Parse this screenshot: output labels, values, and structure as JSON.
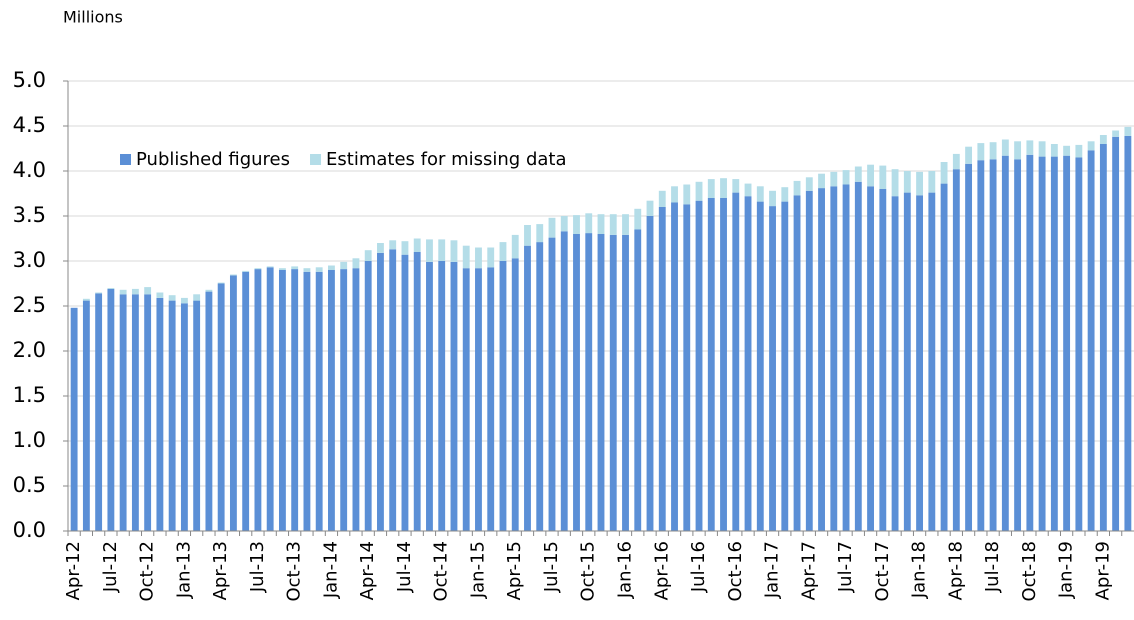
{
  "chart_data": {
    "type": "stacked_bar",
    "y_label": "Millions",
    "categories": [
      "Apr-12",
      null,
      null,
      "Jul-12",
      null,
      null,
      "Oct-12",
      null,
      null,
      "Jan-13",
      null,
      null,
      "Apr-13",
      null,
      null,
      "Jul-13",
      null,
      null,
      "Oct-13",
      null,
      null,
      "Jan-14",
      null,
      null,
      "Apr-14",
      null,
      null,
      "Jul-14",
      null,
      null,
      "Oct-14",
      null,
      null,
      "Jan-15",
      null,
      null,
      "Apr-15",
      null,
      null,
      "Jul-15",
      null,
      null,
      "Oct-15",
      null,
      null,
      "Jan-16",
      null,
      null,
      "Apr-16",
      null,
      null,
      "Jul-16",
      null,
      null,
      "Oct-16",
      null,
      null,
      "Jan-17",
      null,
      null,
      "Apr-17",
      null,
      null,
      "Jul-17",
      null,
      null,
      "Oct-17",
      null,
      null,
      "Jan-18",
      null,
      null,
      "Apr-18",
      null,
      null,
      "Jul-18",
      null,
      null,
      "Oct-18",
      null,
      null,
      "Jan-19",
      null,
      null,
      "Apr-19",
      null,
      null
    ],
    "series": [
      {
        "name": "Published figures",
        "color": "#5b8fd6",
        "values": [
          2.48,
          2.56,
          2.64,
          2.69,
          2.63,
          2.63,
          2.63,
          2.59,
          2.56,
          2.53,
          2.56,
          2.66,
          2.75,
          2.84,
          2.88,
          2.91,
          2.93,
          2.9,
          2.91,
          2.88,
          2.88,
          2.9,
          2.91,
          2.92,
          3.0,
          3.09,
          3.13,
          3.07,
          3.1,
          2.99,
          3.0,
          2.99,
          2.92,
          2.92,
          2.93,
          3.0,
          3.03,
          3.17,
          3.21,
          3.26,
          3.33,
          3.3,
          3.31,
          3.3,
          3.29,
          3.29,
          3.35,
          3.5,
          3.6,
          3.65,
          3.63,
          3.67,
          3.7,
          3.7,
          3.76,
          3.72,
          3.66,
          3.61,
          3.66,
          3.73,
          3.78,
          3.81,
          3.83,
          3.85,
          3.88,
          3.83,
          3.8,
          3.72,
          3.76,
          3.73,
          3.76,
          3.86,
          4.02,
          4.08,
          4.12,
          4.13,
          4.17,
          4.13,
          4.18,
          4.16,
          4.16,
          4.17,
          4.15,
          4.23,
          4.3,
          4.38,
          4.39
        ]
      },
      {
        "name": "Estimates for missing data",
        "color": "#b4dde8",
        "values": [
          0,
          0.02,
          0.01,
          0.01,
          0.05,
          0.06,
          0.08,
          0.06,
          0.06,
          0.06,
          0.07,
          0.02,
          0.01,
          0.01,
          0.01,
          0.01,
          0.01,
          0.02,
          0.03,
          0.04,
          0.05,
          0.05,
          0.08,
          0.11,
          0.12,
          0.11,
          0.1,
          0.15,
          0.15,
          0.25,
          0.24,
          0.24,
          0.25,
          0.23,
          0.22,
          0.21,
          0.26,
          0.23,
          0.2,
          0.22,
          0.17,
          0.21,
          0.22,
          0.22,
          0.23,
          0.23,
          0.23,
          0.17,
          0.18,
          0.18,
          0.22,
          0.21,
          0.21,
          0.22,
          0.15,
          0.14,
          0.17,
          0.17,
          0.16,
          0.16,
          0.15,
          0.16,
          0.16,
          0.16,
          0.17,
          0.24,
          0.26,
          0.3,
          0.24,
          0.26,
          0.24,
          0.24,
          0.17,
          0.19,
          0.19,
          0.19,
          0.18,
          0.2,
          0.16,
          0.17,
          0.14,
          0.11,
          0.14,
          0.1,
          0.1,
          0.07,
          0.1
        ]
      }
    ],
    "ylim": [
      0,
      5
    ],
    "yticks": [
      {
        "value": 0,
        "label": "0.0"
      },
      {
        "value": 0.5,
        "label": "0.5"
      },
      {
        "value": 1,
        "label": "1.0"
      },
      {
        "value": 1.5,
        "label": "1.5"
      },
      {
        "value": 2,
        "label": "2.0"
      },
      {
        "value": 2.5,
        "label": "2.5"
      },
      {
        "value": 3,
        "label": "3.0"
      },
      {
        "value": 3.5,
        "label": "3.5"
      },
      {
        "value": 4,
        "label": "4.0"
      },
      {
        "value": 4.5,
        "label": "4.5"
      },
      {
        "value": 5,
        "label": "5.0"
      }
    ],
    "grid": true,
    "legend": "top-left"
  }
}
